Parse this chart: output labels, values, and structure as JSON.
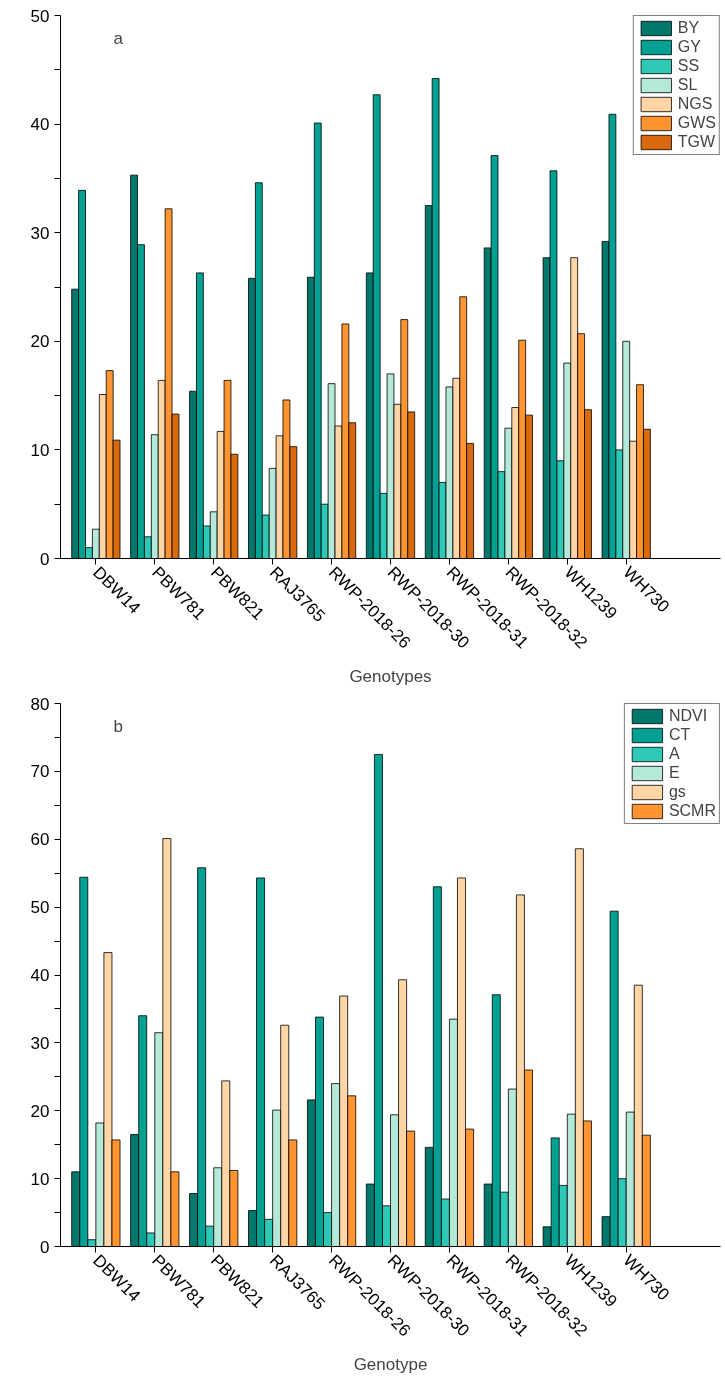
{
  "chart_data": [
    {
      "type": "bar",
      "title": "a",
      "xlabel": "Genotypes",
      "categories": [
        "DBW14",
        "PBW781",
        "PBW821",
        "RAJ3765",
        "RWP-2018-26",
        "RWP-2018-30",
        "RWP-2018-31",
        "RWP-2018-32",
        "WH1239",
        "WH730"
      ],
      "ylim": [
        0,
        50
      ],
      "yticks": [
        0,
        {
          "value": 5,
          "label": null
        },
        10,
        {
          "value": 15,
          "label": null
        },
        20,
        {
          "value": 25,
          "label": null
        },
        30,
        {
          "value": 35,
          "label": null
        },
        40,
        {
          "value": 45,
          "label": null
        },
        50
      ],
      "grid": false,
      "legend": "top right",
      "series": [
        {
          "name": "BY",
          "color": "#00776b",
          "values": [
            24.8,
            35.3,
            15.4,
            25.8,
            25.9,
            26.3,
            32.5,
            28.6,
            27.7,
            29.2
          ]
        },
        {
          "name": "GY",
          "color": "#00a193",
          "values": [
            33.9,
            28.9,
            26.3,
            34.6,
            40.1,
            42.7,
            44.2,
            37.1,
            35.7,
            40.9
          ]
        },
        {
          "name": "SS",
          "color": "#2ec8b6",
          "values": [
            1,
            2,
            3,
            4,
            5,
            6,
            7,
            8,
            9,
            10
          ]
        },
        {
          "name": "SL",
          "color": "#b4e8d8",
          "values": [
            2.7,
            11.4,
            4.3,
            8.3,
            16.1,
            17,
            15.8,
            12,
            18,
            20
          ]
        },
        {
          "name": "NGS",
          "color": "#ffd5a6",
          "values": [
            15.1,
            16.4,
            11.7,
            11.3,
            12.2,
            14.2,
            16.6,
            13.9,
            27.7,
            10.8
          ]
        },
        {
          "name": "GWS",
          "color": "#ff9430",
          "values": [
            17.3,
            32.2,
            16.4,
            14.6,
            21.6,
            22,
            24.1,
            20.1,
            20.7,
            16
          ]
        },
        {
          "name": "TGW",
          "color": "#d8690c",
          "values": [
            10.9,
            13.3,
            9.6,
            10.3,
            12.5,
            13.5,
            10.6,
            13.2,
            13.7,
            11.9
          ]
        }
      ]
    },
    {
      "type": "bar",
      "title": "b",
      "xlabel": "Genotype",
      "categories": [
        "DBW14",
        "PBW781",
        "PBW821",
        "RAJ3765",
        "RWP-2018-26",
        "RWP-2018-30",
        "RWP-2018-31",
        "RWP-2018-32",
        "WH1239",
        "WH730"
      ],
      "ylim": [
        0,
        80
      ],
      "yticks": [
        0,
        {
          "value": 5,
          "label": null
        },
        10,
        {
          "value": 15,
          "label": null
        },
        20,
        {
          "value": 25,
          "label": null
        },
        30,
        {
          "value": 35,
          "label": null
        },
        40,
        {
          "value": 45,
          "label": null
        },
        50,
        {
          "value": 55,
          "label": null
        },
        60,
        {
          "value": 65,
          "label": null
        },
        70,
        {
          "value": 75,
          "label": null
        },
        80
      ],
      "grid": false,
      "legend": "top right",
      "series": [
        {
          "name": "NDVI",
          "color": "#00776b",
          "values": [
            11,
            16.5,
            7.8,
            5.3,
            21.6,
            9.2,
            14.6,
            9.2,
            2.9,
            4.4
          ]
        },
        {
          "name": "CT",
          "color": "#00a193",
          "values": [
            54.4,
            34,
            55.8,
            54.3,
            33.8,
            72.5,
            53,
            37.1,
            16,
            49.4
          ]
        },
        {
          "name": "A",
          "color": "#2ec8b6",
          "values": [
            1,
            2,
            3,
            4,
            5,
            6,
            7,
            8,
            9,
            10
          ]
        },
        {
          "name": "E",
          "color": "#b4e8d8",
          "values": [
            18.2,
            31.5,
            11.6,
            20.1,
            24,
            19.4,
            33.5,
            23.2,
            19.5,
            19.8
          ]
        },
        {
          "name": "gs",
          "color": "#ffd5a6",
          "values": [
            43.3,
            60.1,
            24.4,
            32.6,
            36.9,
            39.3,
            54.3,
            51.8,
            58.6,
            38.5
          ]
        },
        {
          "name": "SCMR",
          "color": "#ff9430",
          "values": [
            15.7,
            11,
            11.2,
            15.7,
            22.2,
            17,
            17.3,
            26,
            18.5,
            16.4
          ]
        }
      ]
    }
  ]
}
